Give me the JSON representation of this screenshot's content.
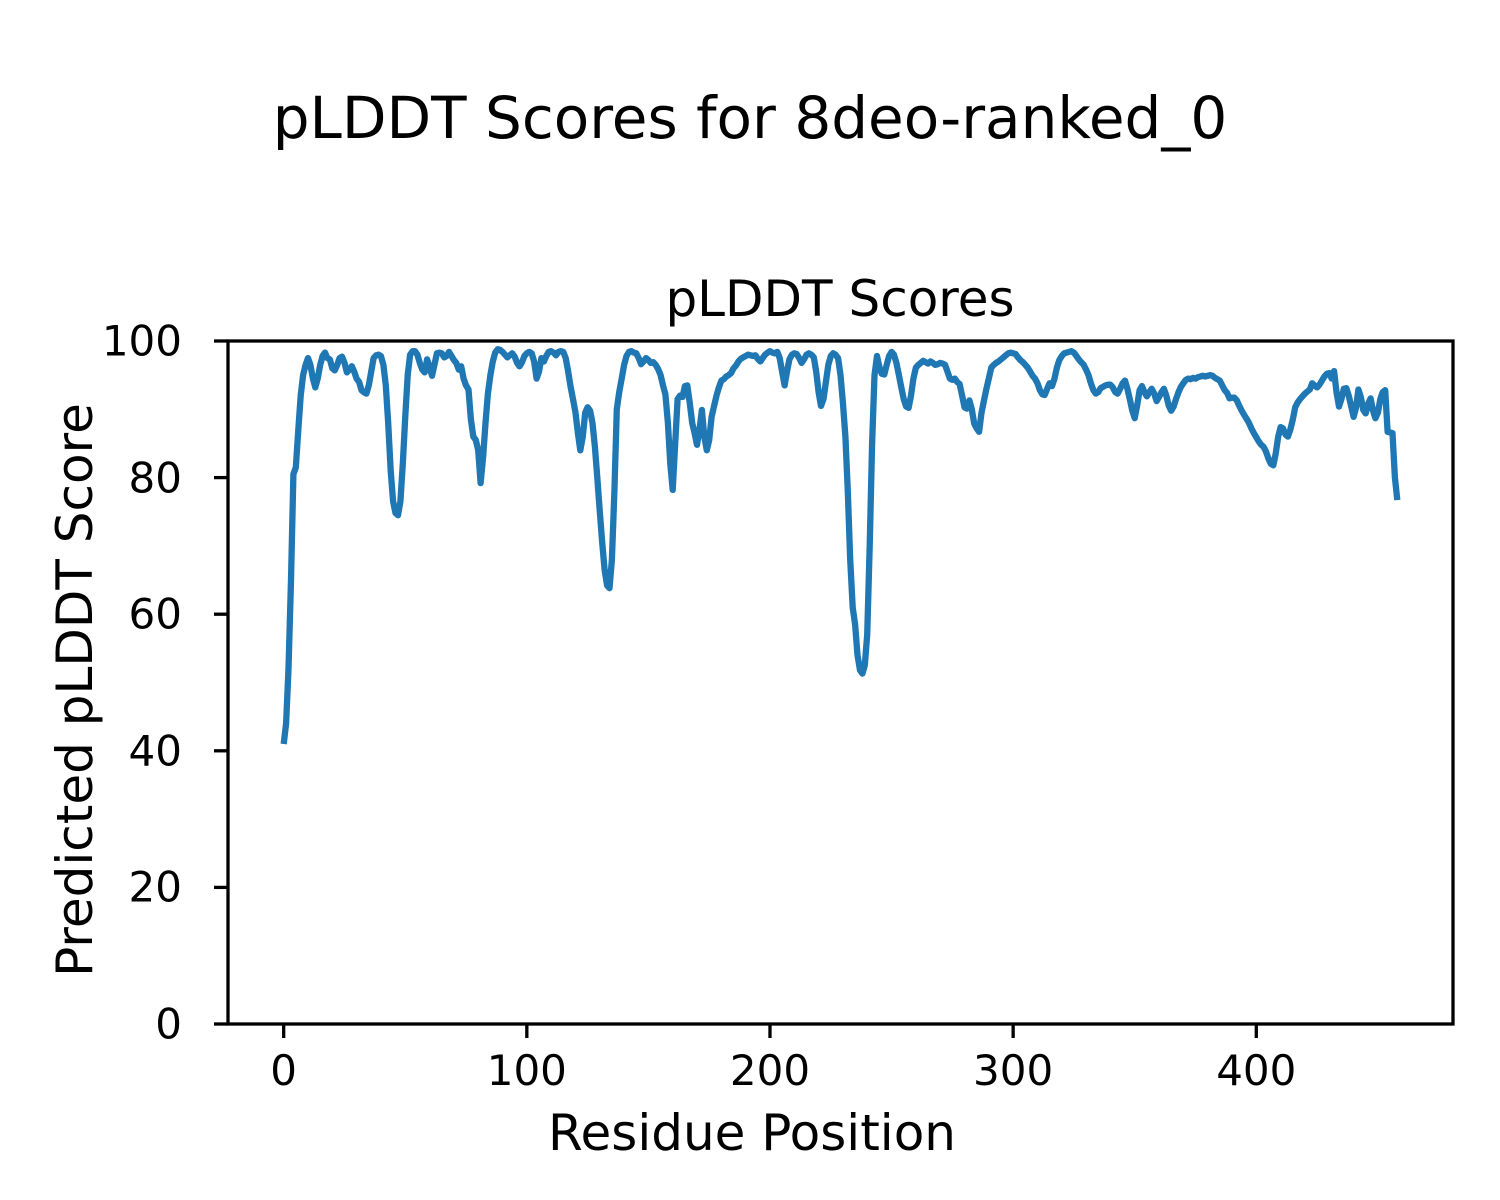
{
  "figure": {
    "suptitle": "pLDDT Scores for 8deo-ranked_0",
    "axes_title": "pLDDT Scores",
    "xlabel": "Residue Position",
    "ylabel": "Predicted pLDDT Score"
  },
  "chart_data": {
    "type": "line",
    "title": "pLDDT Scores",
    "suptitle": "pLDDT Scores for 8deo-ranked_0",
    "xlabel": "Residue Position",
    "ylabel": "Predicted pLDDT Score",
    "line_color": "#1f77b4",
    "axis_color": "#000000",
    "grid": false,
    "legend": null,
    "xlim": [
      -22.9,
      480.9
    ],
    "ylim": [
      0,
      100
    ],
    "xticks": [
      0,
      100,
      200,
      300,
      400
    ],
    "yticks": [
      0,
      20,
      40,
      60,
      80,
      100
    ],
    "x_start": 0,
    "x_step": 1,
    "values": [
      41,
      44,
      52,
      65,
      80.5,
      81.5,
      87,
      92,
      95,
      96.5,
      97.5,
      96.5,
      94.5,
      93.2,
      94.5,
      96.5,
      97.8,
      98.3,
      97.5,
      97.3,
      96,
      95.7,
      96.5,
      97.5,
      97.7,
      96.8,
      95.4,
      95.8,
      96.3,
      95.5,
      94.5,
      94,
      92.8,
      92.5,
      92.3,
      93.5,
      95.5,
      97.5,
      97.9,
      98,
      97.8,
      96.5,
      93.5,
      88,
      81,
      76.5,
      74.8,
      74.5,
      76.5,
      82,
      89,
      95,
      98,
      98.5,
      98.5,
      98,
      96.8,
      95.8,
      95.4,
      97.3,
      96.2,
      94.9,
      96.5,
      98.2,
      98.3,
      98.2,
      97.6,
      97.8,
      98.4,
      97.8,
      97.2,
      96.8,
      95.8,
      96.3,
      94.5,
      93.5,
      92.9,
      88.5,
      86,
      85.5,
      84,
      79.2,
      83,
      88,
      92.3,
      95,
      97,
      98.3,
      98.8,
      98.7,
      98.4,
      98,
      97.6,
      97.9,
      98.2,
      97.7,
      96.8,
      96.3,
      96.9,
      97.8,
      98.2,
      98.4,
      98.2,
      97,
      94.5,
      95.5,
      97.5,
      97,
      97.8,
      98.4,
      98.5,
      98.3,
      97.9,
      98.4,
      98.5,
      98.4,
      97.5,
      95.5,
      93.3,
      91.5,
      89.5,
      86.5,
      84,
      86,
      89.5,
      90.3,
      89.8,
      88,
      84.5,
      80,
      75,
      70.5,
      66.5,
      64.2,
      63.8,
      68,
      78,
      90,
      92.5,
      94.5,
      96.5,
      97.8,
      98.4,
      98.5,
      98.3,
      98.2,
      97.5,
      96.6,
      97,
      97.5,
      97.2,
      96.8,
      96.9,
      96.5,
      95.9,
      95,
      93.5,
      92.2,
      88,
      82,
      78.2,
      85,
      91.5,
      92,
      91.8,
      93.4,
      93.5,
      91,
      88,
      86.5,
      84.8,
      87,
      89.9,
      86,
      84,
      85.5,
      88.9,
      90.5,
      92,
      93.2,
      94.2,
      94.4,
      94.8,
      95,
      95.3,
      96,
      96.4,
      97,
      97.4,
      97.6,
      97.8,
      98,
      97.9,
      97.8,
      97.9,
      97.4,
      97,
      97.5,
      98,
      98.3,
      98.5,
      98.3,
      98.2,
      98.4,
      97.5,
      95.5,
      93.5,
      95.5,
      97.3,
      98,
      98.2,
      98.1,
      97.5,
      96.8,
      97.3,
      98,
      98.2,
      98,
      97.6,
      95.5,
      92.5,
      90.5,
      91.5,
      94,
      96.5,
      97.8,
      98.2,
      98,
      97.5,
      95,
      91,
      86,
      78,
      68,
      61,
      58.5,
      54,
      51.8,
      51.3,
      52.5,
      57,
      70,
      85,
      95,
      97.8,
      96.2,
      95.2,
      95.1,
      96.5,
      97.8,
      98.4,
      98,
      96.8,
      95,
      93.2,
      91.5,
      90.4,
      90.2,
      92,
      94.5,
      96.1,
      96.5,
      96.8,
      97.1,
      96.9,
      96.7,
      97,
      96.8,
      96.5,
      96.6,
      96.8,
      96.7,
      96.5,
      95.5,
      94.5,
      94.3,
      94.5,
      94,
      93.7,
      92,
      90.3,
      90.1,
      91.3,
      90,
      87.9,
      87.2,
      86.7,
      89.5,
      91.3,
      93,
      94.5,
      96.1,
      96.5,
      96.8,
      97,
      97.3,
      97.6,
      97.9,
      98.2,
      98.3,
      98.2,
      98.1,
      97.6,
      97.2,
      96.9,
      96.5,
      96.1,
      95.5,
      94.9,
      94.5,
      93.8,
      92.8,
      92.2,
      92.1,
      93,
      93.8,
      93.4,
      94.5,
      96.1,
      97.2,
      97.8,
      98.2,
      98.3,
      98.4,
      98.5,
      98.3,
      97.8,
      97.3,
      96.9,
      96.5,
      95.8,
      95,
      93.8,
      92.8,
      92.3,
      92.5,
      93.1,
      93.3,
      93.5,
      93.6,
      93.6,
      93.2,
      92.5,
      92.3,
      93,
      93.8,
      94.2,
      93,
      91.4,
      89.8,
      88.7,
      90.5,
      92.8,
      93.4,
      92.5,
      91.9,
      92.5,
      93,
      92.3,
      91.2,
      91.8,
      92.5,
      93,
      92,
      90.5,
      89.8,
      90.4,
      91.5,
      92.5,
      93.3,
      93.8,
      94.3,
      94.5,
      94.4,
      94.6,
      94.5,
      94.7,
      94.8,
      94.9,
      94.8,
      94.9,
      95,
      94.9,
      94.6,
      94.4,
      94.2,
      93.5,
      92.8,
      92.4,
      91.6,
      91.7,
      91.7,
      91.3,
      90.5,
      89.8,
      89.2,
      88.6,
      88,
      87.2,
      86.5,
      85.9,
      85.3,
      84.8,
      84.5,
      83.8,
      82.8,
      82,
      81.8,
      83.5,
      86,
      87.4,
      87.2,
      86.3,
      86,
      87,
      88.5,
      90.3,
      91,
      91.5,
      91.9,
      92.3,
      92.6,
      92.9,
      93.8,
      93.5,
      93.2,
      93.6,
      94.2,
      94.8,
      95.2,
      95.3,
      94.5,
      95.6,
      92.5,
      90.4,
      91.5,
      93,
      93.1,
      92,
      90.5,
      88.9,
      90.2,
      92.9,
      91.8,
      89.9,
      89.4,
      90.8,
      91.6,
      89.8,
      88.7,
      89.5,
      91.5,
      92.5,
      92.8,
      86.7,
      86.6,
      86.5,
      80,
      76.7
    ]
  }
}
